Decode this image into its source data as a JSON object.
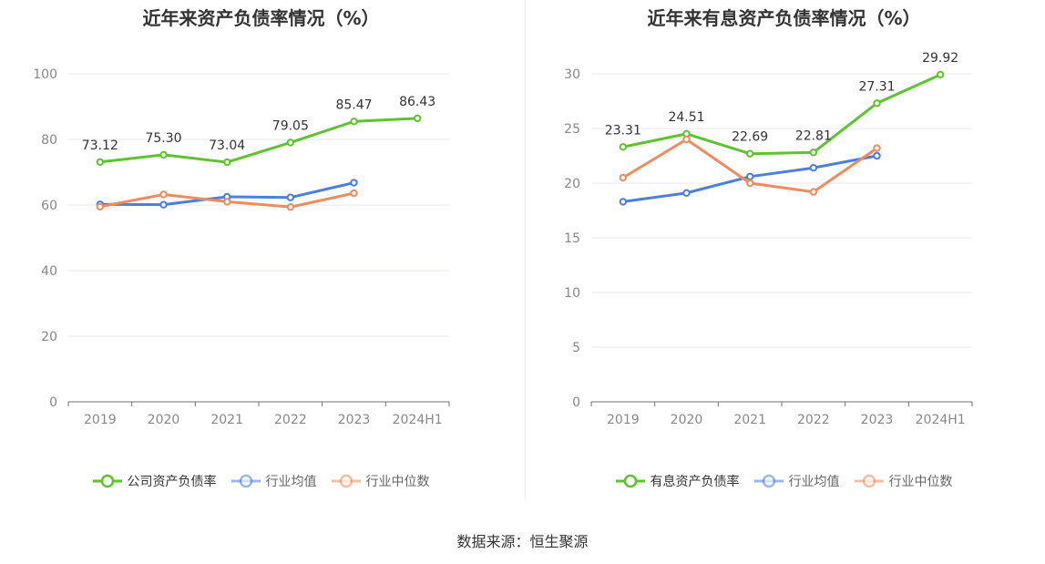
{
  "charts": [
    {
      "title": "近年来资产负债率情况（%）",
      "chart_data": {
        "type": "line",
        "categories": [
          "2019",
          "2020",
          "2021",
          "2022",
          "2023",
          "2024H1"
        ],
        "ylim": [
          0,
          100
        ],
        "yticks": [
          0,
          20,
          40,
          60,
          80,
          100
        ],
        "grid": true,
        "legend_position": "bottom",
        "series": [
          {
            "name": "公司资产负债率",
            "color": "#5ec32e",
            "values": [
              73.12,
              75.3,
              73.04,
              79.05,
              85.47,
              86.43
            ],
            "labels": [
              "73.12",
              "75.30",
              "73.04",
              "79.05",
              "85.47",
              "86.43"
            ]
          },
          {
            "name": "行业均值",
            "color": "#4a7ee0",
            "values": [
              60.2,
              60.1,
              62.5,
              62.3,
              66.8,
              null
            ],
            "labels": null
          },
          {
            "name": "行业中位数",
            "color": "#f08c5c",
            "values": [
              59.5,
              63.2,
              61.0,
              59.4,
              63.6,
              null
            ],
            "labels": null
          }
        ]
      }
    },
    {
      "title": "近年来有息资产负债率情况（%）",
      "chart_data": {
        "type": "line",
        "categories": [
          "2019",
          "2020",
          "2021",
          "2022",
          "2023",
          "2024H1"
        ],
        "ylim": [
          0,
          30
        ],
        "yticks": [
          0,
          5,
          10,
          15,
          20,
          25,
          30
        ],
        "grid": true,
        "legend_position": "bottom",
        "series": [
          {
            "name": "有息资产负债率",
            "color": "#5ec32e",
            "values": [
              23.31,
              24.51,
              22.69,
              22.81,
              27.31,
              29.92
            ],
            "labels": [
              "23.31",
              "24.51",
              "22.69",
              "22.81",
              "27.31",
              "29.92"
            ]
          },
          {
            "name": "行业均值",
            "color": "#4a7ee0",
            "values": [
              18.3,
              19.1,
              20.6,
              21.4,
              22.5,
              null
            ],
            "labels": null
          },
          {
            "name": "行业中位数",
            "color": "#f08c5c",
            "values": [
              20.5,
              24.0,
              20.0,
              19.2,
              23.2,
              null
            ],
            "labels": null
          }
        ]
      }
    }
  ],
  "source": "数据来源：恒生聚源"
}
